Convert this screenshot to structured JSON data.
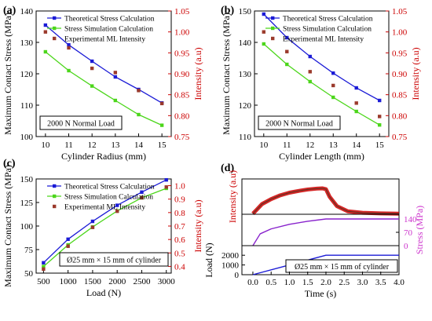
{
  "figure": {
    "panel_labels": [
      "(a)",
      "(b)",
      "(c)",
      "(d)"
    ]
  },
  "chart_data": [
    {
      "panel": "(a)",
      "type": "line",
      "xlabel": "Cylinder Radius (mm)",
      "ylabel": "Maximum Contact Stress (MPa)",
      "ylabel_right": "Intensity (a.u)",
      "x": [
        10,
        11,
        12,
        13,
        14,
        15
      ],
      "xlim": [
        9.6,
        15.4
      ],
      "xticks": [
        "10",
        "11",
        "12",
        "13",
        "14",
        "15"
      ],
      "ylim": [
        100,
        140
      ],
      "yticks": [
        "100",
        "110",
        "120",
        "130",
        "140"
      ],
      "ylim_right": [
        0.75,
        1.05
      ],
      "yticks_right": [
        "0.75",
        "0.80",
        "0.85",
        "0.90",
        "0.95",
        "1.00",
        "1.05"
      ],
      "series": [
        {
          "name": "Theoretical  Stress Calculation",
          "color": "#1b1bd6",
          "marker": "square",
          "axis": "left",
          "values": [
            135.5,
            129.2,
            124.0,
            119.0,
            115.0,
            110.7
          ]
        },
        {
          "name": "Stress Simulation Calculation",
          "color": "#4cd61b",
          "marker": "square",
          "axis": "left",
          "values": [
            127.0,
            121.0,
            116.1,
            111.5,
            107.0,
            103.6
          ]
        },
        {
          "name": "Experimental ML Intensity",
          "color": "#9b3a2c",
          "marker": "square",
          "axis": "right",
          "values": [
            1.0,
            0.962,
            0.913,
            0.903,
            0.86,
            0.829
          ]
        }
      ],
      "annotation": "2000 N Normal Load"
    },
    {
      "panel": "(b)",
      "type": "line",
      "xlabel": "Cylinder Length (mm)",
      "ylabel": "Maximum Contact Stress (MPa)",
      "ylabel_right": "Intensity (a.u)",
      "x": [
        10,
        11,
        12,
        13,
        14,
        15
      ],
      "xlim": [
        9.6,
        15.4
      ],
      "xticks": [
        "10",
        "11",
        "12",
        "13",
        "14",
        "15"
      ],
      "ylim": [
        110,
        150
      ],
      "yticks": [
        "110",
        "120",
        "130",
        "140",
        "150"
      ],
      "ylim_right": [
        0.75,
        1.05
      ],
      "yticks_right": [
        "0.75",
        "0.80",
        "0.85",
        "0.90",
        "0.95",
        "1.00",
        "1.05"
      ],
      "series": [
        {
          "name": "Theoretical  Stress Calculation",
          "color": "#1b1bd6",
          "marker": "square",
          "axis": "left",
          "values": [
            149.0,
            141.5,
            135.5,
            130.2,
            125.5,
            121.5
          ]
        },
        {
          "name": "Stress Simulation Calculation",
          "color": "#4cd61b",
          "marker": "square",
          "axis": "left",
          "values": [
            139.5,
            133.0,
            127.5,
            122.5,
            118.0,
            113.7
          ]
        },
        {
          "name": "Experimental ML Intensity",
          "color": "#9b3a2c",
          "marker": "square",
          "axis": "right",
          "values": [
            1.0,
            0.953,
            0.905,
            0.872,
            0.83,
            0.798
          ]
        }
      ],
      "annotation": "2000 N Normal Load"
    },
    {
      "panel": "(c)",
      "type": "line",
      "xlabel": "Load (N)",
      "ylabel": "Maximum Contact Stress (MPa)",
      "ylabel_right": "Intensity (a.u)",
      "x": [
        500,
        1000,
        1500,
        2000,
        2500,
        3000
      ],
      "xlim": [
        350,
        3100
      ],
      "xticks": [
        "500",
        "1000",
        "1500",
        "2000",
        "2500",
        "3000"
      ],
      "ylim": [
        50,
        150
      ],
      "yticks": [
        "50",
        "75",
        "100",
        "125",
        "150"
      ],
      "ylim_right": [
        0.35,
        1.05
      ],
      "yticks_right": [
        "0.4",
        "0.5",
        "0.6",
        "0.7",
        "0.8",
        "0.9",
        "1.0"
      ],
      "series": [
        {
          "name": "Theoretical  Stress Calculation",
          "color": "#1b1bd6",
          "marker": "square",
          "axis": "left",
          "values": [
            61,
            86,
            105,
            122,
            136,
            149
          ]
        },
        {
          "name": "Stress Simulation Calculation",
          "color": "#4cd61b",
          "marker": "square",
          "axis": "left",
          "values": [
            57,
            80,
            99,
            116,
            130,
            140
          ]
        },
        {
          "name": "Experimental ML Intensity",
          "color": "#9b3a2c",
          "marker": "square",
          "axis": "right",
          "values": [
            0.38,
            0.55,
            0.69,
            0.81,
            0.91,
            0.99
          ]
        }
      ],
      "annotation": "Ø25 mm × 15 mm of cylinder"
    },
    {
      "panel": "(d)",
      "type": "line",
      "xlabel": "Time (s)",
      "xlim": [
        -0.3,
        4.0
      ],
      "xticks": [
        "0.0",
        "0.5",
        "1.0",
        "1.5",
        "2.0",
        "2.5",
        "3.0",
        "3.5",
        "4.0"
      ],
      "x_tick_values": [
        0,
        0.5,
        1,
        1.5,
        2,
        2.5,
        3,
        3.5,
        4
      ],
      "subplots": [
        {
          "name": "intensity",
          "ylabel": "Intensity (a.u)",
          "ylim": [
            0,
            1.05
          ],
          "yticks": [],
          "series": [
            {
              "color": "#cc0000",
              "style": "thick-trace",
              "x": [
                0,
                0.1,
                0.25,
                0.5,
                0.75,
                1.0,
                1.25,
                1.5,
                1.75,
                1.9,
                2.0,
                2.1,
                2.3,
                2.6,
                3.0,
                3.5,
                4.0
              ],
              "values": [
                0.02,
                0.15,
                0.35,
                0.52,
                0.65,
                0.74,
                0.8,
                0.85,
                0.88,
                0.89,
                0.86,
                0.6,
                0.28,
                0.1,
                0.05,
                0.03,
                0.02
              ]
            }
          ]
        },
        {
          "name": "stress",
          "ylabel": "Stress (MPa)",
          "ylabel_side": "right",
          "ylabel_color": "#cc33cc",
          "ylim": [
            0,
            140
          ],
          "yticks": [
            "0",
            "70",
            "140"
          ],
          "series": [
            {
              "color": "#8822cc",
              "x": [
                0,
                0.2,
                0.5,
                1.0,
                1.5,
                2.0,
                4.0
              ],
              "values": [
                0,
                62,
                88,
                112,
                128,
                140,
                140
              ]
            }
          ]
        },
        {
          "name": "load",
          "ylabel": "Load (N)",
          "ylim": [
            0,
            2500
          ],
          "yticks": [
            "0",
            "1000",
            "2000"
          ],
          "series": [
            {
              "color": "#1b1bd6",
              "x": [
                0,
                2.0,
                4.0
              ],
              "values": [
                0,
                2000,
                2000
              ]
            }
          ],
          "annotation": "Ø25 mm × 15 mm of cylinder"
        }
      ]
    }
  ]
}
